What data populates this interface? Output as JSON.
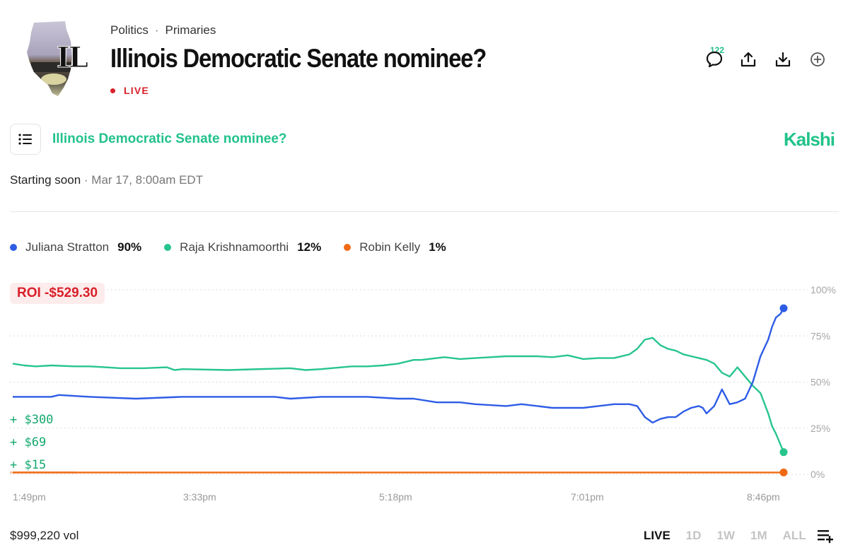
{
  "header": {
    "breadcrumb": [
      "Politics",
      "Primaries"
    ],
    "title": "Illinois Democratic Senate nominee?",
    "status": "LIVE",
    "thumbnail_text": "IL",
    "comment_count": "122"
  },
  "market": {
    "title": "Illinois Democratic Senate nominee?",
    "brand": "Kalshi",
    "starting": "Starting soon",
    "date": "Mar 17, 8:00am EDT"
  },
  "legend": [
    {
      "name": "Juliana Stratton",
      "pct": "90%",
      "color": "#2e5ce6"
    },
    {
      "name": "Raja Krishnamoorthi",
      "pct": "12%",
      "color": "#27c58d"
    },
    {
      "name": "Robin Kelly",
      "pct": "1%",
      "color": "#f06a14"
    }
  ],
  "roi": "ROI -$529.30",
  "gains": [
    "+ $300",
    "+ $69",
    "+ $15"
  ],
  "footer": {
    "volume": "$999,220 vol",
    "ranges": [
      "LIVE",
      "1D",
      "1W",
      "1M",
      "ALL"
    ],
    "active_range": "LIVE"
  },
  "chart_data": {
    "type": "line",
    "title": "Illinois Democratic Senate nominee?",
    "x_tick_labels": [
      "1:49pm",
      "3:33pm",
      "5:18pm",
      "7:01pm",
      "8:46pm"
    ],
    "y_tick_labels": [
      "100%",
      "75%",
      "50%",
      "25%",
      "0%"
    ],
    "ylim": [
      0,
      100
    ],
    "xlim": [
      0,
      100
    ],
    "grid": true,
    "series": [
      {
        "name": "Raja Krishnamoorthi",
        "color": "#27c58d",
        "x": [
          0,
          1.5,
          3,
          5,
          8,
          10,
          12,
          14,
          17,
          20,
          21,
          22,
          28,
          36,
          38,
          40,
          44,
          46,
          48,
          50,
          52,
          53,
          55,
          56,
          58,
          60,
          62,
          64,
          68,
          70,
          72,
          74,
          76,
          78,
          80,
          81,
          82,
          83,
          84,
          85,
          86,
          87,
          88,
          89,
          90,
          91,
          92,
          93,
          94,
          95,
          96,
          97,
          98,
          98.5,
          99,
          99.6,
          100
        ],
        "values": [
          60,
          59,
          58.5,
          59,
          58.5,
          58.5,
          58,
          57.5,
          57.5,
          58,
          56.5,
          57,
          56.5,
          57.5,
          56.5,
          57,
          58.5,
          58.5,
          59,
          60,
          62,
          62,
          63,
          63.5,
          62.5,
          63,
          63.5,
          64,
          64,
          63.5,
          64.5,
          62.5,
          63,
          63,
          65,
          68,
          73,
          74,
          70,
          68,
          67,
          65,
          64,
          63,
          62,
          60,
          55,
          53,
          58,
          53,
          48,
          44,
          33,
          26,
          22,
          16,
          12
        ]
      },
      {
        "name": "Juliana Stratton",
        "color": "#2e5ce6",
        "x": [
          0,
          5,
          6,
          10,
          16,
          22,
          28,
          34,
          36,
          40,
          46,
          50,
          52,
          55,
          58,
          60,
          64,
          66,
          70,
          74,
          76,
          78,
          80,
          81,
          82,
          83,
          84,
          85,
          86,
          87,
          88,
          89,
          89.5,
          90,
          91,
          92,
          93,
          94,
          95,
          96,
          97,
          98,
          98.5,
          99,
          99.6,
          100
        ],
        "values": [
          42,
          42,
          43,
          42,
          41,
          42,
          42,
          42,
          41,
          42,
          42,
          41,
          41,
          39,
          39,
          38,
          37,
          38,
          36,
          36,
          37,
          38,
          38,
          37,
          31,
          28,
          30,
          31,
          31,
          34,
          36,
          37,
          36,
          33,
          37,
          46,
          38,
          39,
          41,
          50,
          64,
          73,
          80,
          85,
          87,
          90
        ]
      },
      {
        "name": "Robin Kelly",
        "color": "#f06a14",
        "x": [
          0,
          100
        ],
        "values": [
          1,
          1
        ]
      }
    ]
  }
}
